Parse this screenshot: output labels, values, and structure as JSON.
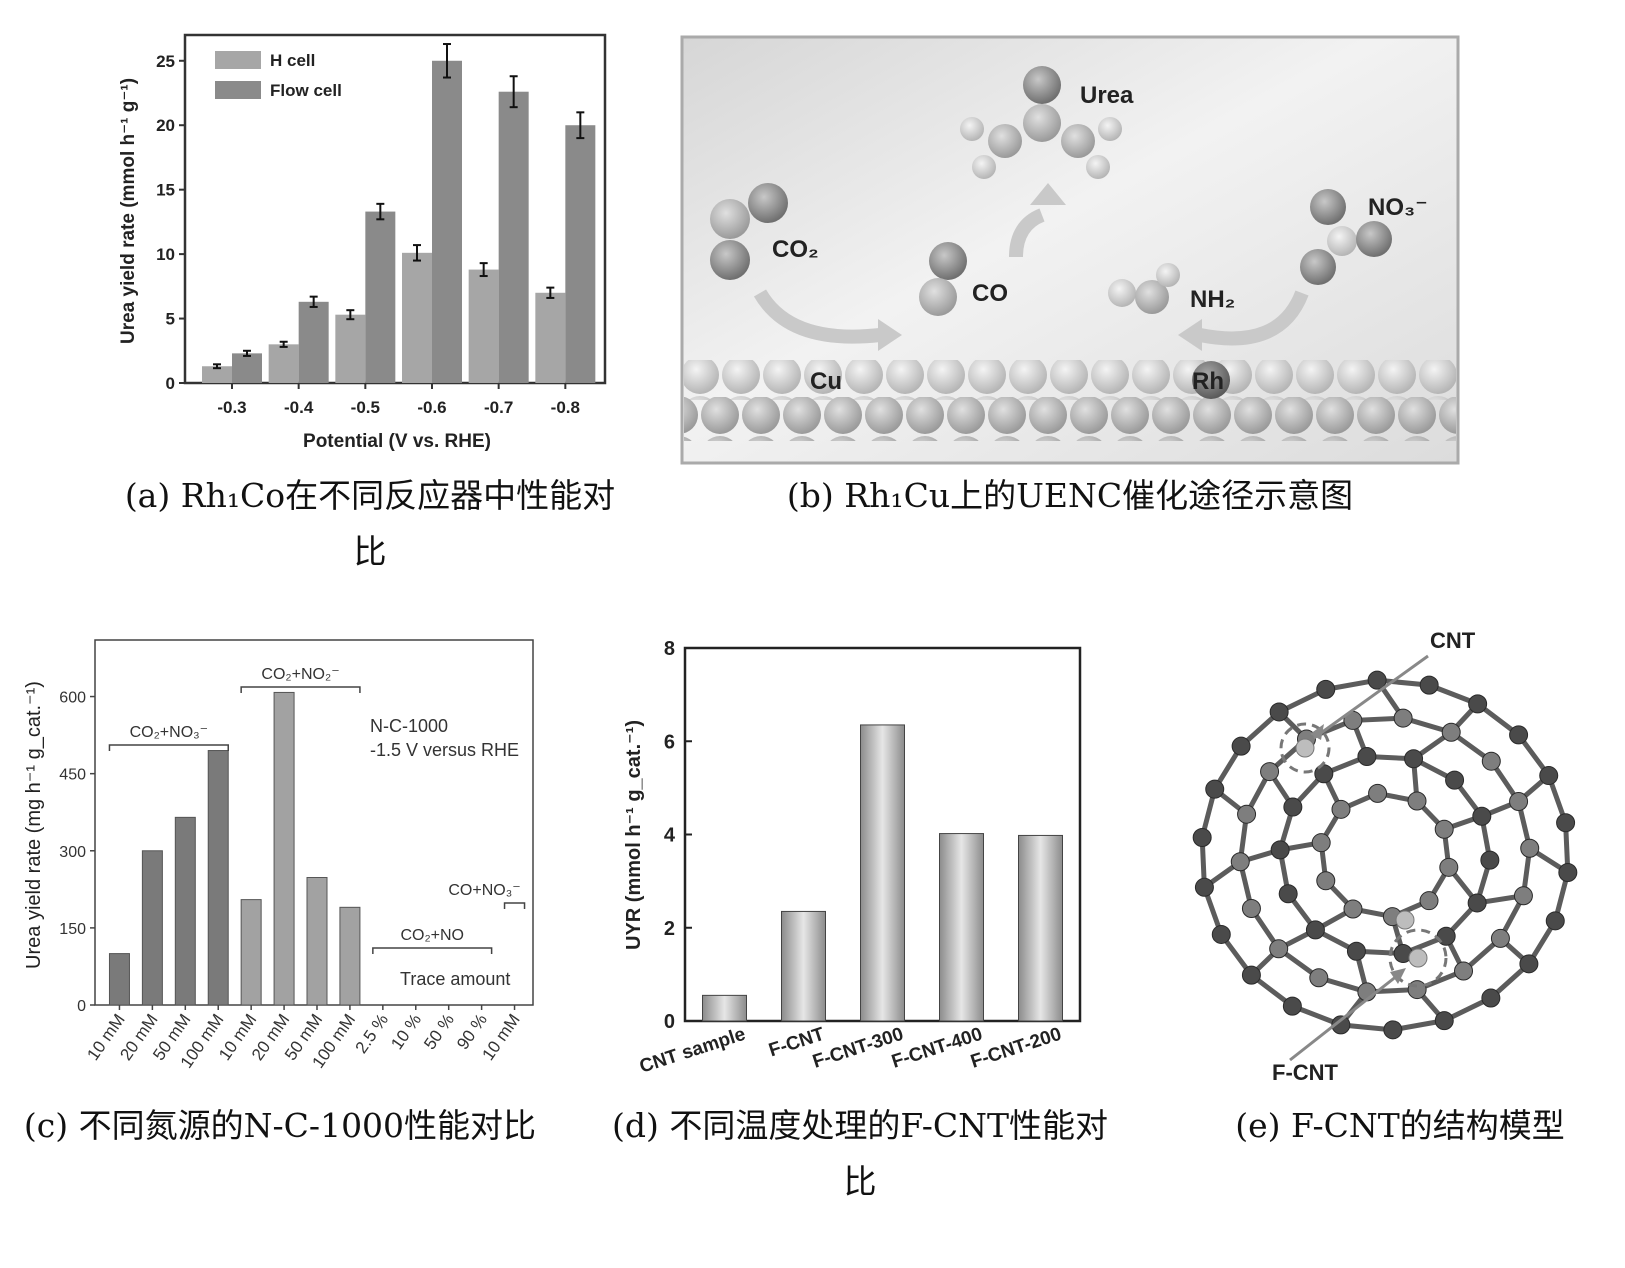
{
  "captions": {
    "a_line1": "(a) Rh₁Co在不同反应器中性能对",
    "a_line2": "比",
    "b": "(b) Rh₁Cu上的UENC催化途径示意图",
    "c": "(c) 不同氮源的N-C-1000性能对比",
    "d_line1": "(d) 不同温度处理的F-CNT性能对",
    "d_line2": "比",
    "e": "(e) F-CNT的结构模型"
  },
  "chart_data": [
    {
      "panel": "a",
      "type": "bar",
      "xlabel": "Potential (V vs. RHE)",
      "ylabel": "Urea yield rate (mmol h⁻¹ g⁻¹)",
      "categories": [
        "-0.3",
        "-0.4",
        "-0.5",
        "-0.6",
        "-0.7",
        "-0.8"
      ],
      "yticks": [
        "0",
        "5",
        "10",
        "15",
        "20",
        "25"
      ],
      "ylim": [
        0,
        27
      ],
      "legend": "top-left",
      "series": [
        {
          "name": "H cell",
          "values": [
            1.3,
            3.0,
            5.3,
            10.1,
            8.8,
            7.0
          ],
          "errors": [
            0.15,
            0.2,
            0.35,
            0.6,
            0.5,
            0.4
          ],
          "color": "#a6a6a6"
        },
        {
          "name": "Flow cell",
          "values": [
            2.3,
            6.3,
            13.3,
            25.0,
            22.6,
            20.0
          ],
          "errors": [
            0.2,
            0.4,
            0.6,
            1.3,
            1.2,
            1.0
          ],
          "color": "#8a8a8a"
        }
      ]
    },
    {
      "panel": "c",
      "type": "bar",
      "ylabel": "Urea yield rate (mg h⁻¹ g_cat.⁻¹)",
      "categories": [
        "10 mM",
        "20 mM",
        "50 mM",
        "100 mM",
        "10 mM",
        "20 mM",
        "50 mM",
        "100 mM",
        "2.5 %",
        "10 %",
        "50 %",
        "90 %",
        "10 mM"
      ],
      "values": [
        100,
        300,
        365,
        495,
        205,
        608,
        248,
        190,
        0,
        0,
        0,
        0,
        0
      ],
      "bar_colors": [
        "#7a7a7a",
        "#7a7a7a",
        "#7a7a7a",
        "#7a7a7a",
        "#a2a2a2",
        "#a2a2a2",
        "#a2a2a2",
        "#a2a2a2"
      ],
      "yticks": [
        "0",
        "150",
        "300",
        "450",
        "600"
      ],
      "ylim": [
        0,
        710
      ],
      "annotations": [
        "N-C-1000",
        "-1.5 V versus RHE",
        "Trace amount"
      ],
      "group_labels": [
        {
          "text": "CO₂+NO₃⁻",
          "from": 0,
          "to": 3
        },
        {
          "text": "CO₂+NO₂⁻",
          "from": 4,
          "to": 7
        },
        {
          "text": "CO₂+NO",
          "from": 8,
          "to": 11
        },
        {
          "text": "CO+NO₃⁻",
          "from": 12,
          "to": 12
        }
      ]
    },
    {
      "panel": "d",
      "type": "bar",
      "ylabel": "UYR (mmol h⁻¹ g_cat.⁻¹)",
      "categories": [
        "CNT sample",
        "F-CNT",
        "F-CNT-300",
        "F-CNT-400",
        "F-CNT-200"
      ],
      "values": [
        0.55,
        2.35,
        6.35,
        4.02,
        3.98
      ],
      "yticks": [
        "0",
        "2",
        "4",
        "6",
        "8"
      ],
      "ylim": [
        0,
        8
      ]
    }
  ],
  "scheme_b": {
    "labels": {
      "urea": "Urea",
      "co2": "CO₂",
      "co": "CO",
      "no3": "NO₃⁻",
      "nh2": "NH₂",
      "cu": "Cu",
      "rh": "Rh"
    }
  },
  "model_e": {
    "labels": {
      "cnt": "CNT",
      "fcnt": "F-CNT"
    }
  }
}
